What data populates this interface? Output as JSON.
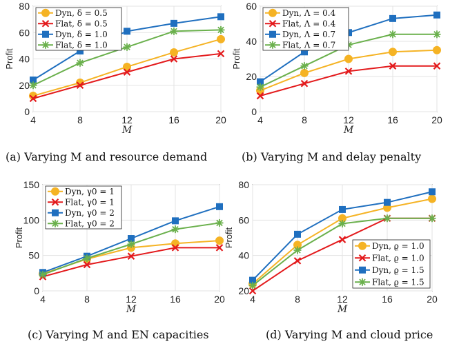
{
  "chart_data": [
    {
      "type": "line",
      "caption": "(a) Varying M and resource demand",
      "xlabel": "M",
      "ylabel": "Profit",
      "x": [
        4,
        8,
        12,
        16,
        20
      ],
      "xlim": [
        4,
        20
      ],
      "ylim": [
        0,
        80
      ],
      "yticks": [
        0,
        20,
        40,
        60,
        80
      ],
      "legend_position": "top-left",
      "grid": true,
      "series": [
        {
          "name": "Dyn, δ = 0.5",
          "color": "#f5b324",
          "marker": "circle",
          "values": [
            12,
            22,
            34,
            45,
            55
          ]
        },
        {
          "name": "Flat, δ = 0.5",
          "color": "#e31a1c",
          "marker": "x",
          "values": [
            10,
            20,
            30,
            40,
            44
          ]
        },
        {
          "name": "Dyn, δ = 1.0",
          "color": "#1f6fbf",
          "marker": "square",
          "values": [
            24,
            46,
            61,
            67,
            72
          ]
        },
        {
          "name": "Flat, δ = 1.0",
          "color": "#6ab04c",
          "marker": "asterisk",
          "values": [
            20,
            37,
            49,
            61,
            62
          ]
        }
      ]
    },
    {
      "type": "line",
      "caption": "(b) Varying M and delay penalty",
      "xlabel": "M",
      "ylabel": "Profit",
      "x": [
        4,
        8,
        12,
        16,
        20
      ],
      "xlim": [
        4,
        20
      ],
      "ylim": [
        0,
        60
      ],
      "yticks": [
        0,
        20,
        40,
        60
      ],
      "legend_position": "top-left",
      "grid": true,
      "series": [
        {
          "name": "Dyn, Λ = 0.4",
          "color": "#f5b324",
          "marker": "circle",
          "values": [
            12,
            22,
            30,
            34,
            35
          ]
        },
        {
          "name": "Flat, Λ = 0.4",
          "color": "#e31a1c",
          "marker": "x",
          "values": [
            9,
            16,
            23,
            26,
            26
          ]
        },
        {
          "name": "Dyn, Λ = 0.7",
          "color": "#1f6fbf",
          "marker": "square",
          "values": [
            17,
            34,
            45,
            53,
            55
          ]
        },
        {
          "name": "Flat, Λ = 0.7",
          "color": "#6ab04c",
          "marker": "asterisk",
          "values": [
            14,
            26,
            38,
            44,
            44
          ]
        }
      ]
    },
    {
      "type": "line",
      "caption": "(c) Varying M and EN capacities",
      "xlabel": "M",
      "ylabel": "Profit",
      "x": [
        4,
        8,
        12,
        16,
        20
      ],
      "xlim": [
        4,
        20
      ],
      "ylim": [
        0,
        150
      ],
      "yticks": [
        0,
        50,
        100,
        150
      ],
      "legend_position": "top-left",
      "grid": true,
      "series": [
        {
          "name": "Dyn, γ0 = 1",
          "color": "#f5b324",
          "marker": "circle",
          "values": [
            24,
            45,
            61,
            67,
            71
          ]
        },
        {
          "name": "Flat, γ0 = 1",
          "color": "#e31a1c",
          "marker": "x",
          "values": [
            20,
            37,
            49,
            61,
            61
          ]
        },
        {
          "name": "Dyn, γ0 = 2",
          "color": "#1f6fbf",
          "marker": "square",
          "values": [
            26,
            49,
            74,
            99,
            119
          ]
        },
        {
          "name": "Flat, γ0 = 2",
          "color": "#6ab04c",
          "marker": "asterisk",
          "values": [
            23,
            46,
            66,
            87,
            96
          ]
        }
      ]
    },
    {
      "type": "line",
      "caption": "(d) Varying M and cloud price",
      "xlabel": "M",
      "ylabel": "Profit",
      "x": [
        4,
        8,
        12,
        16,
        20
      ],
      "xlim": [
        4,
        20
      ],
      "ylim": [
        20,
        80
      ],
      "yticks": [
        20,
        40,
        60,
        80
      ],
      "legend_position": "bottom-right",
      "grid": true,
      "series": [
        {
          "name": "Dyn, ϱ = 1.0",
          "color": "#f5b324",
          "marker": "circle",
          "values": [
            24,
            46,
            61,
            67,
            72
          ]
        },
        {
          "name": "Flat, ϱ = 1.0",
          "color": "#e31a1c",
          "marker": "x",
          "values": [
            20,
            37,
            49,
            61,
            61
          ]
        },
        {
          "name": "Dyn, ϱ = 1.5",
          "color": "#1f6fbf",
          "marker": "square",
          "values": [
            26,
            52,
            66,
            70,
            76
          ]
        },
        {
          "name": "Flat, ϱ = 1.5",
          "color": "#6ab04c",
          "marker": "asterisk",
          "values": [
            23,
            43,
            58,
            61,
            61
          ]
        }
      ]
    }
  ]
}
